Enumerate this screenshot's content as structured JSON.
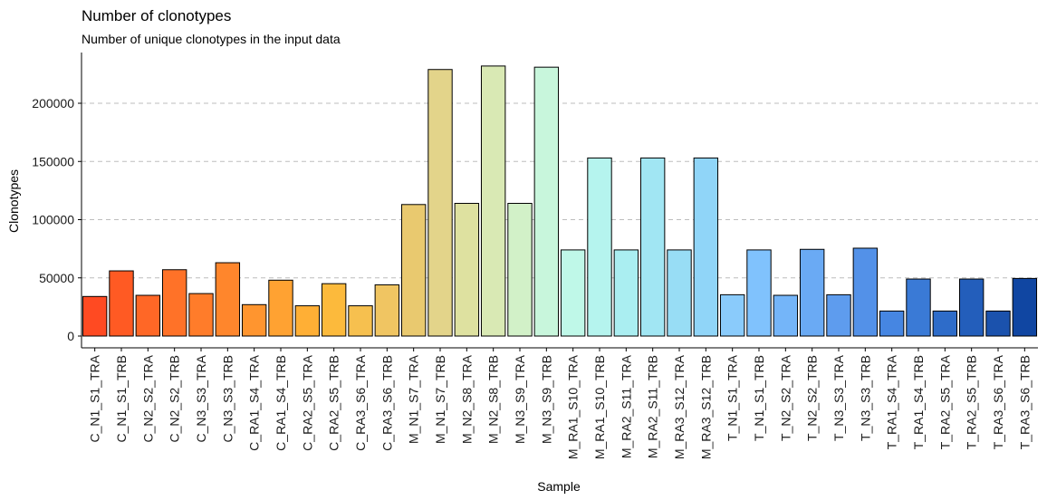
{
  "chart_data": {
    "type": "bar",
    "title": "Number of clonotypes",
    "subtitle": "Number of unique clonotypes in the input data",
    "xlabel": "Sample",
    "ylabel": "Clonotypes",
    "ylim": [
      0,
      250000
    ],
    "yticks": [
      0,
      50000,
      100000,
      150000,
      200000
    ],
    "ytick_labels": [
      "0",
      "50000",
      "100000",
      "150000",
      "200000"
    ],
    "grid": "horizontal dashed",
    "categories": [
      "C_N1_S1_TRA",
      "C_N1_S1_TRB",
      "C_N2_S2_TRA",
      "C_N2_S2_TRB",
      "C_N3_S3_TRA",
      "C_N3_S3_TRB",
      "C_RA1_S4_TRA",
      "C_RA1_S4_TRB",
      "C_RA2_S5_TRA",
      "C_RA2_S5_TRB",
      "C_RA3_S6_TRA",
      "C_RA3_S6_TRB",
      "M_N1_S7_TRA",
      "M_N1_S7_TRB",
      "M_N2_S8_TRA",
      "M_N2_S8_TRB",
      "M_N3_S9_TRA",
      "M_N3_S9_TRB",
      "M_RA1_S10_TRA",
      "M_RA1_S10_TRB",
      "M_RA2_S11_TRA",
      "M_RA2_S11_TRB",
      "M_RA3_S12_TRA",
      "M_RA3_S12_TRB",
      "T_N1_S1_TRA",
      "T_N1_S1_TRB",
      "T_N2_S2_TRA",
      "T_N2_S2_TRB",
      "T_N3_S3_TRA",
      "T_N3_S3_TRB",
      "T_RA1_S4_TRA",
      "T_RA1_S4_TRB",
      "T_RA2_S5_TRA",
      "T_RA2_S5_TRB",
      "T_RA3_S6_TRA",
      "T_RA3_S6_TRB"
    ],
    "values": [
      34000,
      56000,
      35000,
      57000,
      36500,
      63000,
      27000,
      48000,
      26000,
      45000,
      26000,
      44000,
      113000,
      229000,
      114000,
      232000,
      114000,
      231000,
      74000,
      153000,
      74000,
      153000,
      74000,
      153000,
      35500,
      74000,
      35000,
      74500,
      35500,
      75500,
      21500,
      49000,
      21500,
      49000,
      21500,
      49500
    ],
    "colors": [
      "#ff4a22",
      "#ff5a23",
      "#ff6726",
      "#ff7228",
      "#ff7c2a",
      "#ff862c",
      "#ff952f",
      "#ffa232",
      "#ffaf35",
      "#fcba3c",
      "#f6c04f",
      "#f0c562",
      "#e9c96f",
      "#e3d48a",
      "#dee1a0",
      "#d9e9b4",
      "#d2f1c8",
      "#c8f6dc",
      "#bff8e8",
      "#b5f4ee",
      "#aaeef1",
      "#a1e6f3",
      "#98ddf5",
      "#90d5f8",
      "#8acbfb",
      "#80c2fd",
      "#74b5f9",
      "#6aaaf4",
      "#5e9cee",
      "#5391e8",
      "#4686e2",
      "#3a7ad6",
      "#2e6cc9",
      "#235ebb",
      "#1b52ad",
      "#1046a2"
    ]
  }
}
